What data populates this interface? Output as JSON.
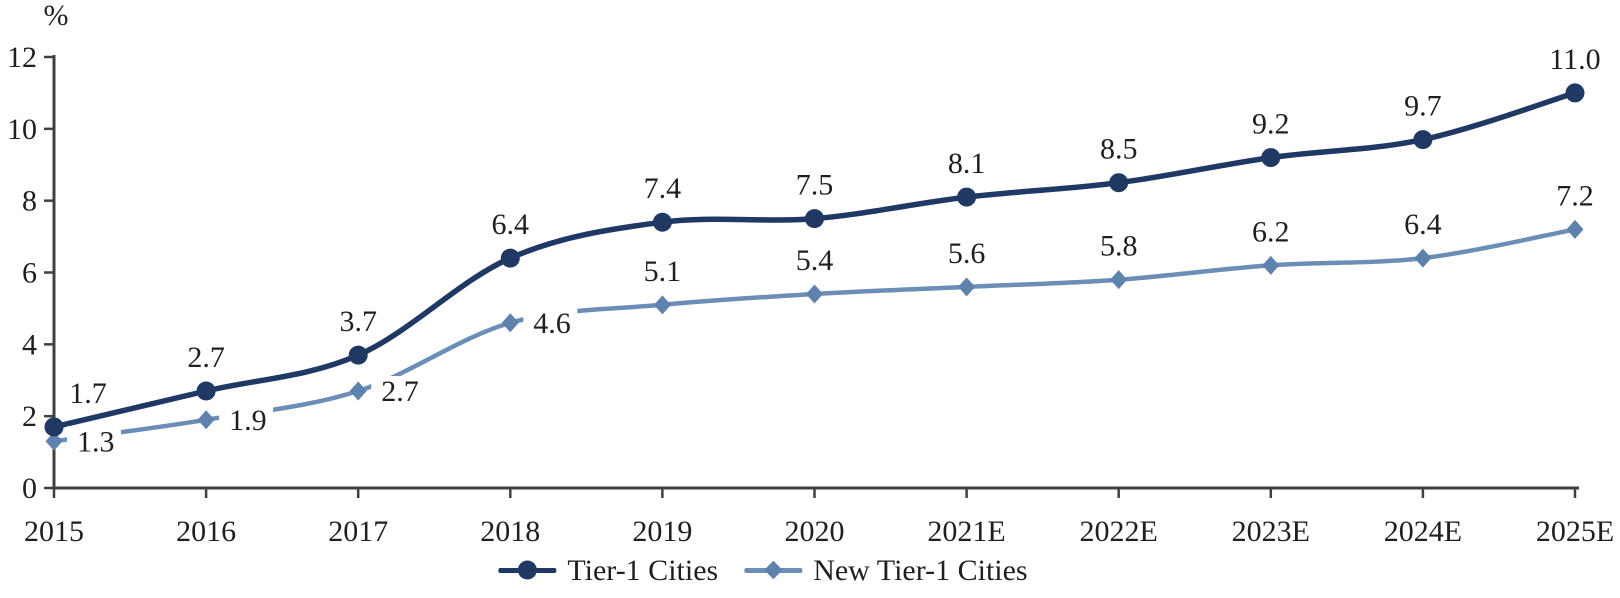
{
  "chart_data": {
    "type": "line",
    "title": "",
    "unit_label": "%",
    "categories": [
      "2015",
      "2016",
      "2017",
      "2018",
      "2019",
      "2020",
      "2021E",
      "2022E",
      "2023E",
      "2024E",
      "2025E"
    ],
    "series": [
      {
        "name": "Tier-1 Cities",
        "values": [
          1.7,
          2.7,
          3.7,
          6.4,
          7.4,
          7.5,
          8.1,
          8.5,
          9.2,
          9.7,
          11.0
        ],
        "color": "#1F3864",
        "marker_color": "#1F3864",
        "marker": "circle",
        "label_positions": [
          "above-right",
          "above",
          "above",
          "above",
          "above",
          "above",
          "above",
          "above",
          "above",
          "above",
          "above"
        ]
      },
      {
        "name": "New Tier-1 Cities",
        "values": [
          1.3,
          1.9,
          2.7,
          4.6,
          5.1,
          5.4,
          5.6,
          5.8,
          6.2,
          6.4,
          7.2
        ],
        "color": "#6C8DB5",
        "marker_color": "#5E82AE",
        "marker": "diamond",
        "label_positions": [
          "right",
          "right",
          "right",
          "right",
          "above",
          "above",
          "above",
          "above",
          "above",
          "above",
          "above"
        ]
      }
    ],
    "y_axis": {
      "min": 0,
      "max": 12,
      "tick_step": 2,
      "tick_labels": [
        "0",
        "2",
        "4",
        "6",
        "8",
        "10",
        "12"
      ]
    },
    "grid": false,
    "legend_position": "bottom"
  },
  "colors": {
    "axis": "#404040",
    "label_text": "#1f1f1f",
    "background": "#ffffff"
  }
}
